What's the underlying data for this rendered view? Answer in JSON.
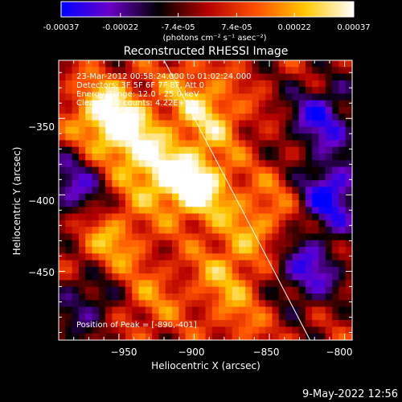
{
  "colorbar": {
    "tick_labels": [
      "-0.00037",
      "-0.00022",
      "-7.4e-05",
      "7.4e-05",
      "0.00022",
      "0.00037"
    ],
    "tick_values": [
      -0.00037,
      -0.00022,
      -7.4e-05,
      7.4e-05,
      0.00022,
      0.00037
    ],
    "range": [
      -0.00037,
      0.00037
    ],
    "units_label": "(photons cm⁻² s⁻¹ asec⁻²)",
    "colors": [
      "#0000ff",
      "#6a00c8",
      "#000000",
      "#b40000",
      "#ff5000",
      "#ffc800",
      "#ffffff"
    ]
  },
  "chart_data": {
    "type": "heatmap",
    "title": "Reconstructed RHESSI Image",
    "xlabel": "Heliocentric X (arcsec)",
    "ylabel": "Heliocentric Y (arcsec)",
    "xlim": [
      -990,
      -795
    ],
    "ylim": [
      -495,
      -312
    ],
    "x_ticks": [
      -950,
      -900,
      -850,
      -800
    ],
    "x_tick_labels": [
      "−950",
      "−900",
      "−850",
      "−800"
    ],
    "y_ticks": [
      -350,
      -400,
      -450
    ],
    "y_tick_labels": [
      "−350",
      "−400",
      "−450"
    ],
    "annotations": [
      "23-Mar-2012 00:58:24.000 to 01:02:24.000",
      "Detectors: 3F 5F 6F 7F 8F, Att 0",
      "Energy Range: 12.0 - 25.0 keV",
      "Clean    Total counts: 4.22E+03"
    ],
    "peak_label": "Position of Peak = [-890,-401]",
    "peak": [
      -890,
      -401
    ],
    "limb_line": [
      [
        -920,
        -312
      ],
      [
        -823,
        -495
      ]
    ],
    "hotspots": [
      {
        "x": -898,
        "y": -395,
        "value": 0.00037
      },
      {
        "x": -960,
        "y": -345,
        "value": 0.0003
      },
      {
        "x": -945,
        "y": -362,
        "value": 0.00026
      },
      {
        "x": -925,
        "y": -385,
        "value": 0.00026
      },
      {
        "x": -888,
        "y": -350,
        "value": 0.00022
      },
      {
        "x": -955,
        "y": -430,
        "value": 0.00022
      },
      {
        "x": -880,
        "y": -450,
        "value": 0.00018
      },
      {
        "x": -860,
        "y": -420,
        "value": 0.00016
      },
      {
        "x": -930,
        "y": -470,
        "value": 0.00015
      },
      {
        "x": -870,
        "y": -480,
        "value": 0.00012
      },
      {
        "x": -840,
        "y": -400,
        "value": 0.0001
      },
      {
        "x": -905,
        "y": -330,
        "value": 0.00014
      }
    ],
    "coldspots": [
      {
        "x": -810,
        "y": -400,
        "value": -0.00037
      },
      {
        "x": -815,
        "y": -350,
        "value": -0.0003
      },
      {
        "x": -825,
        "y": -450,
        "value": -0.00028
      },
      {
        "x": -980,
        "y": -395,
        "value": -0.00025
      },
      {
        "x": -970,
        "y": -470,
        "value": -0.0002
      }
    ]
  },
  "footer": {
    "timestamp": "9-May-2022 12:56"
  }
}
